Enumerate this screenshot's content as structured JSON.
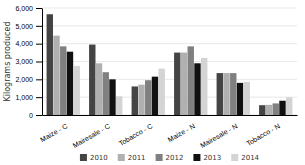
{
  "chart_data": {
    "type": "bar",
    "categories": [
      "Maize - C",
      "Mairesale - C",
      "Tobacco - C",
      "Maize - N",
      "Mairesale - N",
      "Tobacco - N"
    ],
    "series": [
      {
        "name": "2010",
        "color": "#444444",
        "values": [
          5650,
          3950,
          1600,
          3500,
          2350,
          550
        ]
      },
      {
        "name": "2011",
        "color": "#b0b0b0",
        "values": [
          4450,
          2900,
          1700,
          3500,
          2350,
          570
        ]
      },
      {
        "name": "2012",
        "color": "#808080",
        "values": [
          3850,
          2400,
          1950,
          3850,
          2350,
          650
        ]
      },
      {
        "name": "2013",
        "color": "#111111",
        "values": [
          3550,
          2000,
          2150,
          2900,
          1800,
          800
        ]
      },
      {
        "name": "2014",
        "color": "#d4d4d4",
        "values": [
          2750,
          1050,
          2600,
          3200,
          1850,
          1000
        ]
      }
    ],
    "ylabel": "Kilograms produced",
    "ylim": [
      0,
      6000
    ],
    "yticks": [
      0,
      {
        "value": 1000,
        "label": "1,000"
      },
      {
        "value": 2000,
        "label": "2,000"
      },
      {
        "value": 3000,
        "label": "3,000"
      },
      {
        "value": 4000,
        "label": "4,000"
      },
      {
        "value": 5000,
        "label": "5,000"
      },
      {
        "value": 6000,
        "label": "6,000"
      }
    ],
    "grid": true,
    "legend": "bottom"
  }
}
